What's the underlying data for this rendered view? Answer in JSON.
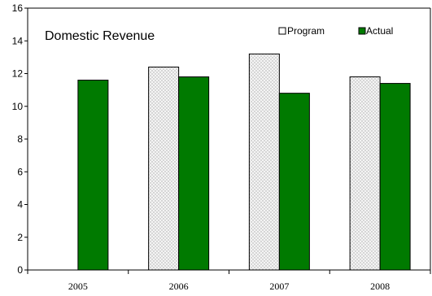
{
  "chart_data": {
    "type": "bar",
    "title": "Domestic Revenue",
    "categories": [
      "2005",
      "2006",
      "2007",
      "2008"
    ],
    "series": [
      {
        "name": "Program",
        "values": [
          null,
          12.4,
          13.2,
          11.8
        ],
        "color": "#e6e6e6",
        "pattern": "dotted"
      },
      {
        "name": "Actual",
        "values": [
          11.6,
          11.8,
          10.8,
          11.4
        ],
        "color": "#007a00"
      }
    ],
    "ylim": [
      0,
      16
    ],
    "yticks": [
      0,
      2,
      4,
      6,
      8,
      10,
      12,
      14,
      16
    ],
    "grid": false,
    "legend_position": "top-right"
  }
}
